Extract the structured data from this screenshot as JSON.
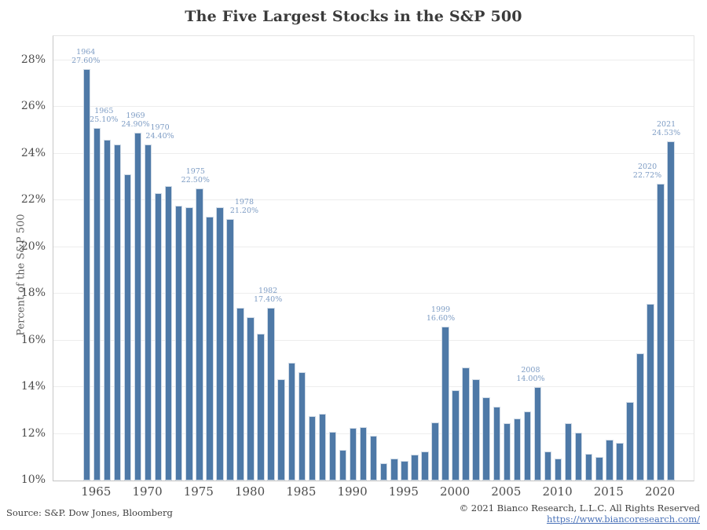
{
  "title": "The Five Largest Stocks in the S&P 500",
  "chart_data": {
    "type": "bar",
    "title": "The Five Largest Stocks in the S&P 500",
    "xlabel": "",
    "ylabel": "Percent of the S&P 500",
    "ylim": [
      10,
      29
    ],
    "grid": "horizontal every 2%",
    "legend": "none",
    "bar_color": "#4e79a7",
    "annotation_color": "#7d9cc4",
    "y_ticks": [
      "28%",
      "26%",
      "24%",
      "22%",
      "20%",
      "18%",
      "16%",
      "14%",
      "12%",
      "10%"
    ],
    "y_tick_values": [
      28,
      26,
      24,
      22,
      20,
      18,
      16,
      14,
      12,
      10
    ],
    "x_ticks": [
      "1965",
      "1970",
      "1975",
      "1980",
      "1985",
      "1990",
      "1995",
      "2000",
      "2005",
      "2010",
      "2015",
      "2020"
    ],
    "years": [
      1964,
      1965,
      1966,
      1967,
      1968,
      1969,
      1970,
      1971,
      1972,
      1973,
      1974,
      1975,
      1976,
      1977,
      1978,
      1979,
      1980,
      1981,
      1982,
      1983,
      1984,
      1985,
      1986,
      1987,
      1988,
      1989,
      1990,
      1991,
      1992,
      1993,
      1994,
      1995,
      1996,
      1997,
      1998,
      1999,
      2000,
      2001,
      2002,
      2003,
      2004,
      2005,
      2006,
      2007,
      2008,
      2009,
      2010,
      2011,
      2012,
      2013,
      2014,
      2015,
      2016,
      2017,
      2018,
      2019,
      2020,
      2021
    ],
    "values": [
      27.6,
      25.1,
      24.6,
      24.4,
      23.1,
      24.9,
      24.4,
      22.3,
      22.6,
      21.75,
      21.7,
      22.5,
      21.3,
      21.7,
      21.2,
      17.4,
      17.0,
      16.3,
      17.4,
      14.35,
      15.05,
      14.65,
      12.75,
      12.85,
      12.1,
      11.3,
      12.25,
      12.3,
      11.9,
      10.75,
      10.95,
      10.85,
      11.1,
      11.25,
      12.5,
      16.6,
      13.85,
      14.85,
      14.35,
      13.55,
      13.15,
      12.45,
      12.65,
      12.95,
      14.0,
      11.25,
      10.95,
      12.45,
      12.05,
      11.15,
      11.0,
      11.75,
      11.6,
      13.35,
      15.45,
      17.55,
      22.72,
      24.53
    ],
    "annotations": [
      {
        "year": "1964",
        "value_label": "27.60%",
        "dx": 0
      },
      {
        "year": "1965",
        "value_label": "25.10%",
        "dx": 10
      },
      {
        "year": "1969",
        "value_label": "24.90%",
        "dx": -2
      },
      {
        "year": "1970",
        "value_label": "24.40%",
        "dx": 16
      },
      {
        "year": "1975",
        "value_label": "22.50%",
        "dx": -4
      },
      {
        "year": "1978",
        "value_label": "21.20%",
        "dx": 19
      },
      {
        "year": "1982",
        "value_label": "17.40%",
        "dx": -3
      },
      {
        "year": "1999",
        "value_label": "16.60%",
        "dx": -5
      },
      {
        "year": "2008",
        "value_label": "14.00%",
        "dx": -8
      },
      {
        "year": "2020",
        "value_label": "22.72%",
        "dx": -16
      },
      {
        "year": "2021",
        "value_label": "24.53%",
        "dx": -5
      }
    ]
  },
  "footer": {
    "source": "Source: S&P. Dow Jones, Bloomberg",
    "copyright": "© 2021 Bianco Research, L.L.C. All Rights Reserved",
    "link": "https://www.biancoresearch.com/"
  }
}
